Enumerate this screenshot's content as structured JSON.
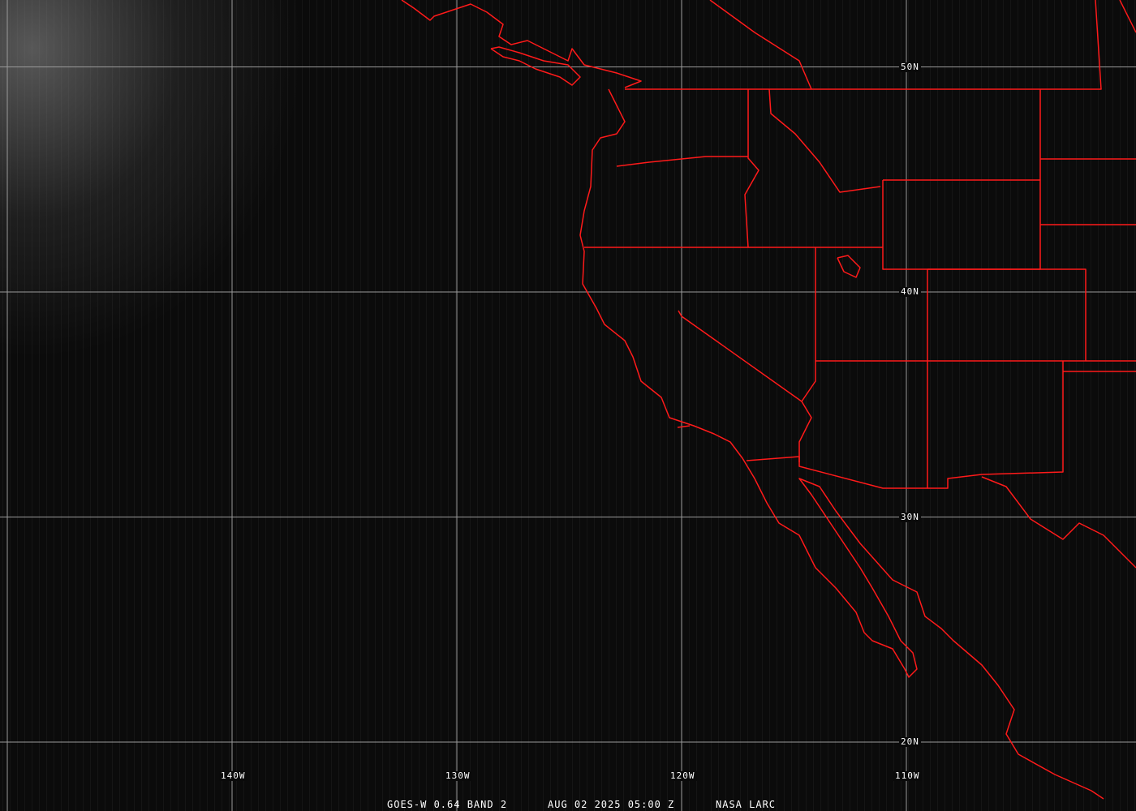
{
  "colors": {
    "grid": "#9a9a9a",
    "boundaries": "#ff1a1a",
    "text": "#ffffff",
    "background": "#080808"
  },
  "grid": {
    "longitudes": [
      {
        "value": -140,
        "label": "140W"
      },
      {
        "value": -130,
        "label": "130W"
      },
      {
        "value": -120,
        "label": "120W"
      },
      {
        "value": -110,
        "label": "110W"
      }
    ],
    "latitudes": [
      {
        "value": 50,
        "label": "50N"
      },
      {
        "value": 40,
        "label": "40N"
      },
      {
        "value": 30,
        "label": "30N"
      },
      {
        "value": 20,
        "label": "20N"
      }
    ]
  },
  "caption": {
    "satellite": "GOES-W 0.64 BAND 2",
    "datetime": "AUG 02 2025 05:00 Z",
    "source": "NASA LARC"
  }
}
